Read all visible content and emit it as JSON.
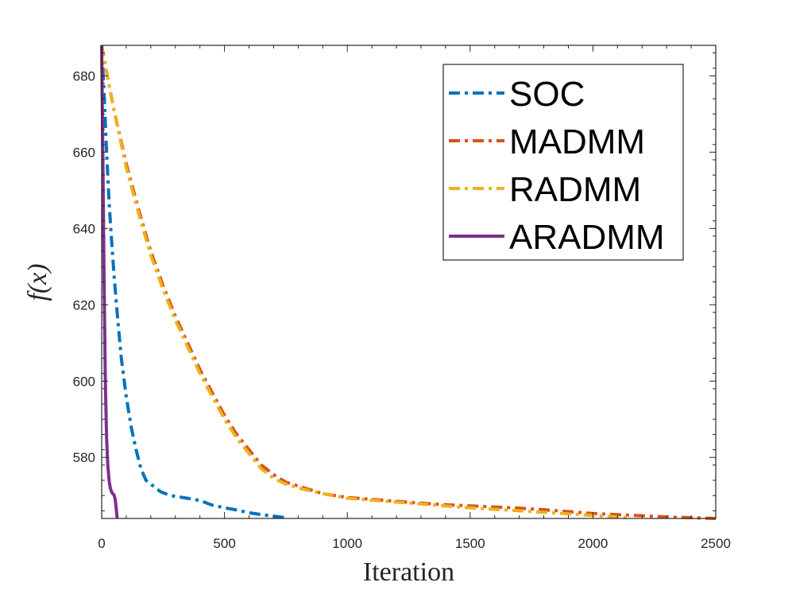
{
  "chart_data": {
    "type": "line",
    "title": "",
    "xlabel": "Iteration",
    "ylabel": "f(x)",
    "xlim": [
      0,
      2500
    ],
    "ylim": [
      564,
      688
    ],
    "xticks": [
      0,
      500,
      1000,
      1500,
      2000,
      2500
    ],
    "yticks": [
      580,
      600,
      620,
      640,
      660,
      680
    ],
    "grid": false,
    "legend_position": "top-right",
    "series": [
      {
        "name": "SOC",
        "color": "#0072BD",
        "style": "dashdot",
        "x": [
          0,
          10,
          20,
          30,
          40,
          50,
          60,
          70,
          80,
          100,
          120,
          140,
          160,
          180,
          200,
          240,
          280,
          300,
          350,
          400,
          450,
          500,
          550,
          600,
          650,
          700,
          750
        ],
        "y": [
          688,
          675,
          660,
          647,
          637,
          628,
          620,
          613,
          606,
          596,
          588,
          582,
          577,
          574,
          573,
          571,
          570,
          569.8,
          569.3,
          568.7,
          567.5,
          566.8,
          566.2,
          565.5,
          565,
          564.6,
          564.2
        ]
      },
      {
        "name": "MADMM",
        "color": "#D95319",
        "style": "dashdot",
        "x": [
          0,
          20,
          50,
          100,
          150,
          200,
          250,
          300,
          350,
          400,
          450,
          500,
          550,
          600,
          650,
          700,
          750,
          800,
          900,
          1000,
          1100,
          1200,
          1300,
          1400,
          1500,
          1600,
          1700,
          1800,
          1900,
          2000,
          2100,
          2200,
          2300,
          2400,
          2500
        ],
        "y": [
          688,
          681,
          671,
          657,
          645,
          634,
          625,
          617,
          610,
          603,
          597,
          591,
          586,
          582,
          578,
          575.5,
          573.5,
          572.5,
          570.5,
          569.5,
          569,
          568.5,
          568,
          567.6,
          567.3,
          567,
          566.7,
          566.3,
          565.8,
          565.3,
          565,
          564.7,
          564.4,
          564.2,
          564
        ]
      },
      {
        "name": "RADMM",
        "color": "#EDB120",
        "style": "dashdot",
        "x": [
          0,
          20,
          50,
          100,
          150,
          200,
          250,
          300,
          350,
          400,
          450,
          500,
          550,
          600,
          650,
          700,
          750,
          800,
          900,
          1000,
          1100,
          1200,
          1300,
          1400,
          1500,
          1600,
          1700,
          1800,
          1900,
          2000,
          2100,
          2150
        ],
        "y": [
          688,
          681,
          671,
          656,
          644,
          633,
          624,
          616,
          609,
          602,
          596,
          590,
          585,
          581,
          577,
          574.5,
          573,
          572,
          570.5,
          569.3,
          568.8,
          568.3,
          567.8,
          567.3,
          566.8,
          566.4,
          566,
          565.6,
          565.2,
          564.8,
          564.4,
          564.1
        ]
      },
      {
        "name": "ARADMM",
        "color": "#7E2F8E",
        "style": "solid",
        "x": [
          0,
          3,
          6,
          10,
          15,
          20,
          25,
          30,
          35,
          40,
          45,
          50,
          55,
          60,
          63
        ],
        "y": [
          688,
          670,
          650,
          625,
          600,
          585,
          578,
          574,
          572,
          571,
          570.5,
          570.2,
          569,
          566,
          564
        ]
      }
    ]
  }
}
